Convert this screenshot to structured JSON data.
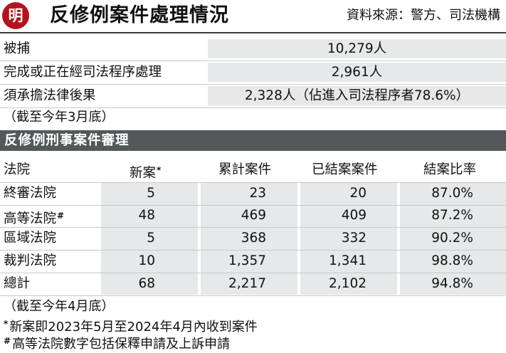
{
  "header": {
    "logo_text": "明",
    "title": "反修例案件處理情況",
    "source": "資料來源：警方、司法機構"
  },
  "summary": {
    "rows": [
      {
        "label": "被捕",
        "value": "10,279人"
      },
      {
        "label": "完成或正在經司法程序處理",
        "value": "2,961人"
      },
      {
        "label": "須承擔法律後果",
        "value": "2,328人（佔進入司法程序者78.6%）"
      }
    ],
    "note": "（截至今年3月底）"
  },
  "table": {
    "title": "反修例刑事案件審理",
    "headers": {
      "court": "法院",
      "new": "新案",
      "new_mark": "*",
      "total": "累計案件",
      "closed": "已結案案件",
      "rate": "結案比率"
    },
    "rows": [
      {
        "court": "終審法院",
        "mark": "",
        "new": "5",
        "total": "23",
        "closed": "20",
        "rate": "87.0%"
      },
      {
        "court": "高等法院",
        "mark": "#",
        "new": "48",
        "total": "469",
        "closed": "409",
        "rate": "87.2%"
      },
      {
        "court": "區域法院",
        "mark": "",
        "new": "5",
        "total": "368",
        "closed": "332",
        "rate": "90.2%"
      },
      {
        "court": "裁判法院",
        "mark": "",
        "new": "10",
        "total": "1,357",
        "closed": "1,341",
        "rate": "98.8%"
      },
      {
        "court": "總計",
        "mark": "",
        "new": "68",
        "total": "2,217",
        "closed": "2,102",
        "rate": "94.8%"
      }
    ],
    "note": "（截至今年4月底）"
  },
  "footnotes": [
    {
      "mark": "*",
      "text": "新案即2023年5月至2024年4月內收到案件"
    },
    {
      "mark": "#",
      "text": "高等法院數字包括保釋申請及上訴申請"
    }
  ],
  "colors": {
    "logo": "#b5121b",
    "section_bar": "#53585b",
    "cell_shade": "#e6e8e9"
  }
}
